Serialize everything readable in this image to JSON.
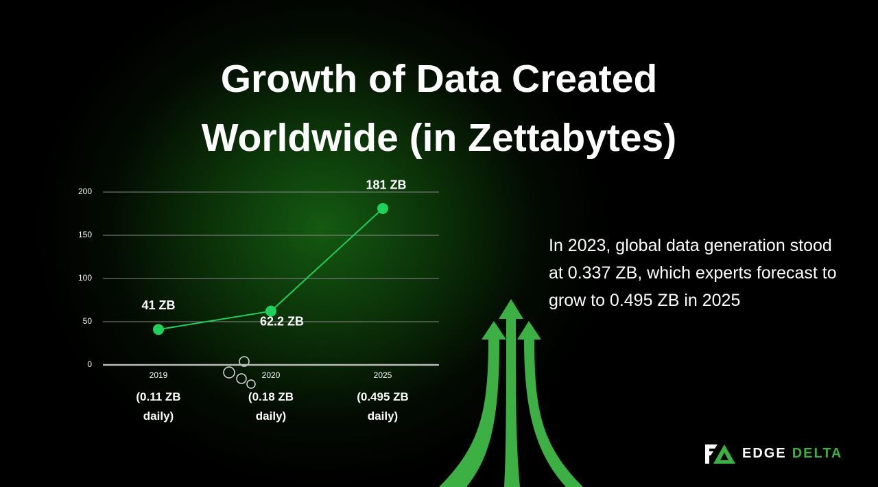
{
  "chart_data": {
    "type": "line",
    "title": "Growth of Data Created Worldwide (in Zettabytes)",
    "categories": [
      "2019",
      "2020",
      "2025"
    ],
    "category_notes": [
      "(0.11 ZB daily)",
      "(0.18 ZB daily)",
      "(0.495 ZB daily)"
    ],
    "series": [
      {
        "color": "#1fd15a",
        "values": [
          41,
          62.2,
          181
        ],
        "value_labels": [
          "41 ZB",
          "62.2 ZB",
          "181 ZB"
        ]
      }
    ],
    "ylim": [
      0,
      200
    ],
    "yticks": [
      0,
      50,
      100,
      150,
      200
    ],
    "grid": true,
    "annotation": "In 2023, global data generation stood at 0.337 ZB, which experts forecast to grow to 0.495 ZB in 2025",
    "logo": {
      "left": "EDGE",
      "right": "DELTA"
    }
  }
}
